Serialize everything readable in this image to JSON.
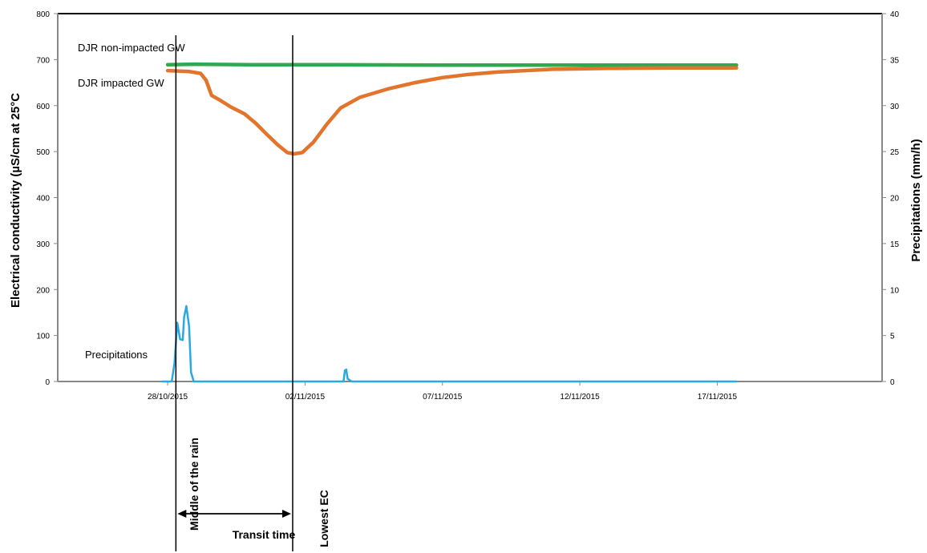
{
  "chart_data": {
    "type": "line",
    "title": "",
    "ylabel": "Electrical conductivity (µS/cm at 25°C",
    "y2label": "Precipitations (mm/h)",
    "ylim": [
      0,
      800
    ],
    "y2lim": [
      0,
      40
    ],
    "yticks": [
      "0",
      "100",
      "200",
      "300",
      "400",
      "500",
      "600",
      "700",
      "800"
    ],
    "y2ticks": [
      "0",
      "5",
      "10",
      "15",
      "20",
      "25",
      "30",
      "35",
      "40"
    ],
    "xlim": [
      -4,
      26
    ],
    "xticks": [
      {
        "x": 0,
        "label": "28/10/2015"
      },
      {
        "x": 5,
        "label": "02/11/2015"
      },
      {
        "x": 10,
        "label": "07/11/2015"
      },
      {
        "x": 15,
        "label": "12/11/2015"
      },
      {
        "x": 20,
        "label": "17/11/2015"
      }
    ],
    "grid": false,
    "series": [
      {
        "name": "DJR non-impacted GW",
        "axis": "left",
        "color": "#2fa84f",
        "points": [
          [
            0,
            689
          ],
          [
            1,
            690
          ],
          [
            3,
            689
          ],
          [
            6,
            689
          ],
          [
            10,
            688
          ],
          [
            15,
            688
          ],
          [
            20.7,
            688
          ]
        ]
      },
      {
        "name": "DJR impacted GW",
        "axis": "left",
        "color": "#e2742b",
        "points": [
          [
            0,
            676
          ],
          [
            0.8,
            674
          ],
          [
            1.2,
            670
          ],
          [
            1.4,
            655
          ],
          [
            1.6,
            622
          ],
          [
            1.9,
            612
          ],
          [
            2.3,
            597
          ],
          [
            2.8,
            582
          ],
          [
            3.2,
            562
          ],
          [
            3.6,
            538
          ],
          [
            4,
            515
          ],
          [
            4.35,
            498
          ],
          [
            4.6,
            495
          ],
          [
            4.9,
            498
          ],
          [
            5.3,
            520
          ],
          [
            5.8,
            560
          ],
          [
            6.3,
            595
          ],
          [
            7,
            618
          ],
          [
            8,
            636
          ],
          [
            9,
            650
          ],
          [
            10,
            661
          ],
          [
            11,
            668
          ],
          [
            12,
            673
          ],
          [
            13,
            676
          ],
          [
            14,
            679
          ],
          [
            15,
            680
          ],
          [
            16,
            681
          ],
          [
            18,
            682
          ],
          [
            20.7,
            682
          ]
        ]
      },
      {
        "name": "Precipitations",
        "axis": "right",
        "color": "#29a9df",
        "points": [
          [
            -0.2,
            0
          ],
          [
            0.15,
            0
          ],
          [
            0.25,
            2
          ],
          [
            0.35,
            6.4
          ],
          [
            0.45,
            4.6
          ],
          [
            0.55,
            4.5
          ],
          [
            0.6,
            7
          ],
          [
            0.68,
            8.2
          ],
          [
            0.78,
            6
          ],
          [
            0.85,
            1
          ],
          [
            0.95,
            0
          ],
          [
            6.4,
            0
          ],
          [
            6.45,
            1.2
          ],
          [
            6.5,
            1.3
          ],
          [
            6.55,
            0.3
          ],
          [
            6.7,
            0
          ],
          [
            20.7,
            0
          ]
        ]
      }
    ],
    "annotations": [
      {
        "text": "Middle of the rain",
        "x": 0.3
      },
      {
        "text": "Lowest EC",
        "x": 4.55
      },
      {
        "text": "Transit time"
      }
    ]
  }
}
